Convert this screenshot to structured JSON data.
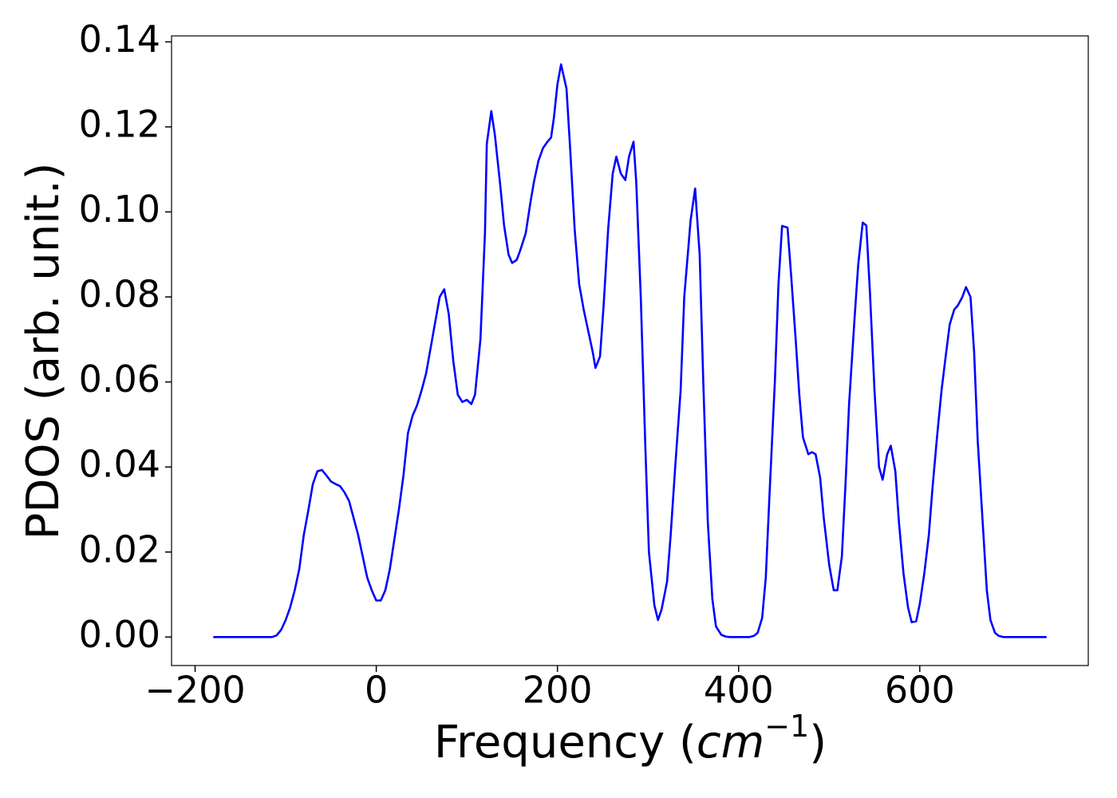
{
  "chart_data": {
    "type": "line",
    "ylabel": "PDOS (arb. unit.)",
    "xlabel": {
      "text": "Frequency (",
      "unit": "cm",
      "exponent": "−1",
      "end": ")"
    },
    "color": "#0000ff",
    "xlim": [
      -226,
      786
    ],
    "ylim": [
      -0.0067,
      0.1414
    ],
    "xticks": [
      {
        "value": -200,
        "label": "−200"
      },
      0,
      200,
      400,
      600
    ],
    "yticks": [
      {
        "value": 0,
        "label": "0.00"
      },
      {
        "value": 0.02,
        "label": "0.02"
      },
      {
        "value": 0.04,
        "label": "0.04"
      },
      {
        "value": 0.06,
        "label": "0.06"
      },
      {
        "value": 0.08,
        "label": "0.08"
      },
      {
        "value": 0.1,
        "label": "0.10"
      },
      {
        "value": 0.12,
        "label": "0.12"
      },
      {
        "value": 0.14,
        "label": "0.14"
      }
    ],
    "x": [
      -180,
      -120,
      -115,
      -110,
      -105,
      -100,
      -95,
      -90,
      -85,
      -80,
      -75,
      -70,
      -65,
      -60,
      -55,
      -50,
      -45,
      -40,
      -35,
      -30,
      -25,
      -20,
      -15,
      -10,
      -5,
      0,
      5,
      10,
      15,
      20,
      25,
      30,
      35,
      40,
      45,
      50,
      55,
      60,
      65,
      70,
      75,
      80,
      85,
      90,
      95,
      100,
      105,
      109,
      115,
      120,
      122,
      127,
      131,
      137,
      141,
      146,
      150,
      155,
      159,
      165,
      170,
      174,
      179,
      184,
      189,
      193,
      196,
      200,
      204,
      210,
      214,
      219,
      224,
      229,
      234,
      239,
      242,
      247,
      251,
      256,
      261,
      265,
      270,
      275,
      279,
      284,
      287,
      292,
      297,
      301,
      307,
      311,
      315,
      321,
      325,
      330,
      336,
      340,
      347,
      352,
      357,
      361,
      366,
      371,
      375,
      381,
      386,
      390,
      412,
      417,
      421,
      426,
      430,
      434,
      440,
      444,
      448,
      454,
      458,
      463,
      467,
      471,
      477,
      481,
      485,
      490,
      494,
      500,
      505,
      509,
      514,
      518,
      522,
      528,
      532,
      537,
      541,
      545,
      550,
      555,
      559,
      564,
      568,
      573,
      577,
      582,
      587,
      591,
      596,
      600,
      605,
      610,
      614,
      619,
      624,
      628,
      633,
      638,
      642,
      647,
      651,
      656,
      660,
      664,
      670,
      674,
      678,
      683,
      687,
      692,
      740
    ],
    "values": [
      0,
      0,
      0,
      0.0004,
      0.0017,
      0.004,
      0.007,
      0.011,
      0.016,
      0.024,
      0.0298,
      0.036,
      0.039,
      0.0393,
      0.038,
      0.0366,
      0.036,
      0.0355,
      0.034,
      0.032,
      0.028,
      0.024,
      0.019,
      0.014,
      0.011,
      0.0086,
      0.0086,
      0.011,
      0.016,
      0.023,
      0.03,
      0.038,
      0.048,
      0.052,
      0.0545,
      0.058,
      0.062,
      0.068,
      0.074,
      0.08,
      0.0818,
      0.076,
      0.065,
      0.057,
      0.0553,
      0.0558,
      0.0548,
      0.057,
      0.07,
      0.095,
      0.116,
      0.1237,
      0.118,
      0.106,
      0.097,
      0.09,
      0.088,
      0.0887,
      0.091,
      0.095,
      0.102,
      0.107,
      0.112,
      0.115,
      0.1165,
      0.1175,
      0.122,
      0.13,
      0.1347,
      0.129,
      0.115,
      0.096,
      0.083,
      0.077,
      0.072,
      0.067,
      0.0633,
      0.066,
      0.078,
      0.096,
      0.109,
      0.113,
      0.109,
      0.1075,
      0.113,
      0.1165,
      0.107,
      0.08,
      0.045,
      0.02,
      0.0075,
      0.004,
      0.0065,
      0.013,
      0.024,
      0.04,
      0.058,
      0.08,
      0.098,
      0.1055,
      0.09,
      0.06,
      0.027,
      0.009,
      0.0025,
      0.0005,
      0.0001,
      0,
      0,
      0.0003,
      0.001,
      0.0045,
      0.014,
      0.033,
      0.06,
      0.083,
      0.0967,
      0.0963,
      0.085,
      0.07,
      0.057,
      0.047,
      0.043,
      0.0435,
      0.043,
      0.0375,
      0.028,
      0.017,
      0.011,
      0.011,
      0.019,
      0.036,
      0.055,
      0.075,
      0.0875,
      0.0975,
      0.0968,
      0.081,
      0.058,
      0.04,
      0.037,
      0.043,
      0.045,
      0.039,
      0.027,
      0.015,
      0.007,
      0.0035,
      0.0037,
      0.0078,
      0.015,
      0.024,
      0.035,
      0.047,
      0.058,
      0.065,
      0.0735,
      0.077,
      0.078,
      0.08,
      0.0823,
      0.08,
      0.067,
      0.046,
      0.025,
      0.011,
      0.004,
      0.001,
      0.0003,
      0,
      0
    ]
  }
}
